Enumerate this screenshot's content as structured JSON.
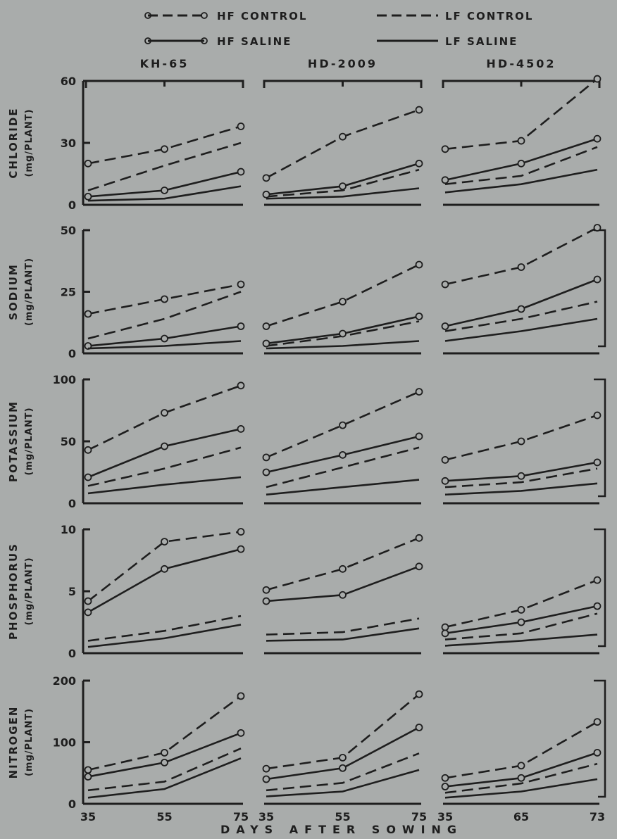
{
  "legend": [
    {
      "label": "HF CONTROL",
      "style": "dashed",
      "marker": "circle"
    },
    {
      "label": "LF CONTROL",
      "style": "dashed",
      "marker": "none"
    },
    {
      "label": "HF SALINE",
      "style": "solid",
      "marker": "circle"
    },
    {
      "label": "LF SALINE",
      "style": "solid",
      "marker": "none"
    }
  ],
  "colors": {
    "background": "#a9acab",
    "ink": "#1e1e1e"
  },
  "x_axis_label": "DAYS AFTER SOWING",
  "chart_data": [
    {
      "type": "line",
      "title": "Chloride",
      "ylabel_line1": "CHLORIDE",
      "ylabel_line2": "(mg/PLANT)",
      "ylim": [
        0,
        60
      ],
      "yticks": [
        "0",
        "30",
        "60"
      ],
      "panels": [
        {
          "title": "KH-65",
          "x": [
            35,
            55,
            75
          ],
          "xtick_labels": [
            "35",
            "55",
            "75"
          ],
          "series": [
            {
              "name": "HF CONTROL",
              "values": [
                20,
                27,
                38
              ]
            },
            {
              "name": "LF CONTROL",
              "values": [
                7,
                19,
                30
              ]
            },
            {
              "name": "HF SALINE",
              "values": [
                4,
                7,
                16
              ]
            },
            {
              "name": "LF SALINE",
              "values": [
                2,
                3,
                9
              ]
            }
          ]
        },
        {
          "title": "HD-2009",
          "x": [
            35,
            55,
            75
          ],
          "xtick_labels": [
            "35",
            "55",
            "75"
          ],
          "series": [
            {
              "name": "HF CONTROL",
              "values": [
                13,
                33,
                46
              ]
            },
            {
              "name": "LF CONTROL",
              "values": [
                4,
                7,
                17
              ]
            },
            {
              "name": "HF SALINE",
              "values": [
                5,
                9,
                20
              ]
            },
            {
              "name": "LF SALINE",
              "values": [
                3,
                4,
                8
              ]
            }
          ]
        },
        {
          "title": "HD-4502",
          "x": [
            35,
            65,
            73
          ],
          "xtick_labels": [
            "35",
            "65",
            "73"
          ],
          "series": [
            {
              "name": "HF CONTROL",
              "values": [
                27,
                31,
                61
              ]
            },
            {
              "name": "LF CONTROL",
              "values": [
                10,
                14,
                28
              ]
            },
            {
              "name": "HF SALINE",
              "values": [
                12,
                20,
                32
              ]
            },
            {
              "name": "LF SALINE",
              "values": [
                6,
                10,
                17
              ]
            }
          ]
        }
      ]
    },
    {
      "type": "line",
      "title": "Sodium",
      "ylabel_line1": "SODIUM",
      "ylabel_line2": "(mg/PLANT)",
      "ylim": [
        0,
        50
      ],
      "yticks": [
        "0",
        "25",
        "50"
      ],
      "panels": [
        {
          "title": "KH-65",
          "x": [
            35,
            55,
            75
          ],
          "xtick_labels": [
            "35",
            "55",
            "75"
          ],
          "series": [
            {
              "name": "HF CONTROL",
              "values": [
                16,
                22,
                28
              ]
            },
            {
              "name": "LF CONTROL",
              "values": [
                6,
                14,
                25
              ]
            },
            {
              "name": "HF SALINE",
              "values": [
                3,
                6,
                11
              ]
            },
            {
              "name": "LF SALINE",
              "values": [
                2,
                3,
                5
              ]
            }
          ]
        },
        {
          "title": "HD-2009",
          "x": [
            35,
            55,
            75
          ],
          "xtick_labels": [
            "35",
            "55",
            "75"
          ],
          "series": [
            {
              "name": "HF CONTROL",
              "values": [
                11,
                21,
                36
              ]
            },
            {
              "name": "LF CONTROL",
              "values": [
                3,
                7,
                13
              ]
            },
            {
              "name": "HF SALINE",
              "values": [
                4,
                8,
                15
              ]
            },
            {
              "name": "LF SALINE",
              "values": [
                2,
                3,
                5
              ]
            }
          ]
        },
        {
          "title": "HD-4502",
          "x": [
            35,
            65,
            73
          ],
          "xtick_labels": [
            "35",
            "65",
            "73"
          ],
          "series": [
            {
              "name": "HF CONTROL",
              "values": [
                28,
                35,
                51
              ]
            },
            {
              "name": "LF CONTROL",
              "values": [
                9,
                14,
                21
              ]
            },
            {
              "name": "HF SALINE",
              "values": [
                11,
                18,
                30
              ]
            },
            {
              "name": "LF SALINE",
              "values": [
                5,
                9,
                14
              ]
            }
          ]
        }
      ]
    },
    {
      "type": "line",
      "title": "Potassium",
      "ylabel_line1": "POTASSIUM",
      "ylabel_line2": "(mg/PLANT)",
      "ylim": [
        0,
        100
      ],
      "yticks": [
        "0",
        "50",
        "100"
      ],
      "panels": [
        {
          "title": "KH-65",
          "x": [
            35,
            55,
            75
          ],
          "xtick_labels": [
            "35",
            "55",
            "75"
          ],
          "series": [
            {
              "name": "HF CONTROL",
              "values": [
                43,
                73,
                95
              ]
            },
            {
              "name": "LF CONTROL",
              "values": [
                14,
                28,
                45
              ]
            },
            {
              "name": "HF SALINE",
              "values": [
                21,
                46,
                60
              ]
            },
            {
              "name": "LF SALINE",
              "values": [
                8,
                15,
                21
              ]
            }
          ]
        },
        {
          "title": "HD-2009",
          "x": [
            35,
            55,
            75
          ],
          "xtick_labels": [
            "35",
            "55",
            "75"
          ],
          "series": [
            {
              "name": "HF CONTROL",
              "values": [
                37,
                63,
                90
              ]
            },
            {
              "name": "LF CONTROL",
              "values": [
                13,
                29,
                45
              ]
            },
            {
              "name": "HF SALINE",
              "values": [
                25,
                39,
                54
              ]
            },
            {
              "name": "LF SALINE",
              "values": [
                7,
                13,
                19
              ]
            }
          ]
        },
        {
          "title": "HD-4502",
          "x": [
            35,
            65,
            73
          ],
          "xtick_labels": [
            "35",
            "65",
            "73"
          ],
          "series": [
            {
              "name": "HF CONTROL",
              "values": [
                35,
                50,
                71
              ]
            },
            {
              "name": "LF CONTROL",
              "values": [
                13,
                17,
                28
              ]
            },
            {
              "name": "HF SALINE",
              "values": [
                18,
                22,
                33
              ]
            },
            {
              "name": "LF SALINE",
              "values": [
                7,
                10,
                16
              ]
            }
          ]
        }
      ]
    },
    {
      "type": "line",
      "title": "Phosphorus",
      "ylabel_line1": "PHOSPHORUS",
      "ylabel_line2": "(mg/PLANT)",
      "ylim": [
        0,
        10
      ],
      "yticks": [
        "0",
        "5",
        "10"
      ],
      "panels": [
        {
          "title": "KH-65",
          "x": [
            35,
            55,
            75
          ],
          "xtick_labels": [
            "35",
            "55",
            "75"
          ],
          "series": [
            {
              "name": "HF CONTROL",
              "values": [
                4.2,
                9.0,
                9.8
              ]
            },
            {
              "name": "LF CONTROL",
              "values": [
                1.0,
                1.8,
                3.0
              ]
            },
            {
              "name": "HF SALINE",
              "values": [
                3.3,
                6.8,
                8.4
              ]
            },
            {
              "name": "LF SALINE",
              "values": [
                0.5,
                1.2,
                2.3
              ]
            }
          ]
        },
        {
          "title": "HD-2009",
          "x": [
            35,
            55,
            75
          ],
          "xtick_labels": [
            "35",
            "55",
            "75"
          ],
          "series": [
            {
              "name": "HF CONTROL",
              "values": [
                5.1,
                6.8,
                9.3
              ]
            },
            {
              "name": "LF CONTROL",
              "values": [
                1.5,
                1.7,
                2.8
              ]
            },
            {
              "name": "HF SALINE",
              "values": [
                4.2,
                4.7,
                7.0
              ]
            },
            {
              "name": "LF SALINE",
              "values": [
                1.0,
                1.1,
                2.0
              ]
            }
          ]
        },
        {
          "title": "HD-4502",
          "x": [
            35,
            65,
            73
          ],
          "xtick_labels": [
            "35",
            "65",
            "73"
          ],
          "series": [
            {
              "name": "HF CONTROL",
              "values": [
                2.1,
                3.5,
                5.9
              ]
            },
            {
              "name": "LF CONTROL",
              "values": [
                1.1,
                1.6,
                3.2
              ]
            },
            {
              "name": "HF SALINE",
              "values": [
                1.6,
                2.5,
                3.8
              ]
            },
            {
              "name": "LF SALINE",
              "values": [
                0.6,
                1.0,
                1.5
              ]
            }
          ]
        }
      ]
    },
    {
      "type": "line",
      "title": "Nitrogen",
      "ylabel_line1": "NITROGEN",
      "ylabel_line2": "(mg/PLANT)",
      "ylim": [
        0,
        200
      ],
      "yticks": [
        "0",
        "100",
        "200"
      ],
      "panels": [
        {
          "title": "KH-65",
          "x": [
            35,
            55,
            75
          ],
          "xtick_labels": [
            "35",
            "55",
            "75"
          ],
          "series": [
            {
              "name": "HF CONTROL",
              "values": [
                55,
                83,
                175
              ]
            },
            {
              "name": "LF CONTROL",
              "values": [
                22,
                36,
                90
              ]
            },
            {
              "name": "HF SALINE",
              "values": [
                44,
                67,
                115
              ]
            },
            {
              "name": "LF SALINE",
              "values": [
                10,
                24,
                74
              ]
            }
          ]
        },
        {
          "title": "HD-2009",
          "x": [
            35,
            55,
            75
          ],
          "xtick_labels": [
            "35",
            "55",
            "75"
          ],
          "series": [
            {
              "name": "HF CONTROL",
              "values": [
                57,
                75,
                178
              ]
            },
            {
              "name": "LF CONTROL",
              "values": [
                22,
                34,
                82
              ]
            },
            {
              "name": "HF SALINE",
              "values": [
                40,
                58,
                124
              ]
            },
            {
              "name": "LF SALINE",
              "values": [
                12,
                20,
                55
              ]
            }
          ]
        },
        {
          "title": "HD-4502",
          "x": [
            35,
            65,
            73
          ],
          "xtick_labels": [
            "35",
            "65",
            "73"
          ],
          "series": [
            {
              "name": "HF CONTROL",
              "values": [
                42,
                62,
                133
              ]
            },
            {
              "name": "LF CONTROL",
              "values": [
                18,
                33,
                65
              ]
            },
            {
              "name": "HF SALINE",
              "values": [
                28,
                42,
                83
              ]
            },
            {
              "name": "LF SALINE",
              "values": [
                10,
                20,
                40
              ]
            }
          ]
        }
      ]
    }
  ]
}
